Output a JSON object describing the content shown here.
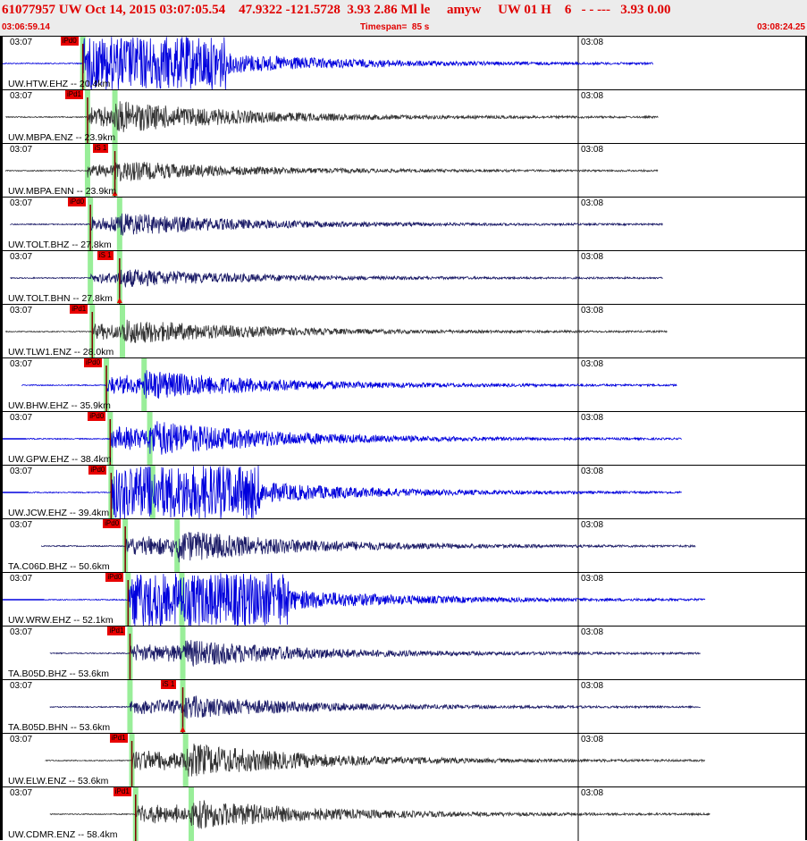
{
  "header": {
    "title": "61077957 UW Oct 14, 2015 03:07:05.54    47.9322 -121.5728  3.93 2.86 Ml le     amyw     UW 01 H    6   - - ---   3.93 0.00",
    "start_time": "03:06:59.14",
    "timespan": "Timespan=  85 s",
    "end_time": "03:08:24.25"
  },
  "colors": {
    "blue": "#0000dd",
    "navy": "#1a1a66",
    "gray": "#333333",
    "pick": "#e80000",
    "band": "#99ee99"
  },
  "panels": [
    {
      "label": "UW.HTW.EHZ -- 20.4km",
      "tick_a": "03:07",
      "tick_b": "03:08",
      "pick": "iPd0",
      "color": "blue",
      "pick_s": 8.5,
      "s_s": null,
      "start_s": -0.3,
      "end_s": 69.0,
      "amp": 1.0,
      "preline": "blue"
    },
    {
      "label": "UW.MBPA.ENZ -- 23.9km",
      "tick_a": "03:07",
      "tick_b": "03:08",
      "pick": "iPd1",
      "color": "gray",
      "pick_s": 9.0,
      "s_s": 11.9,
      "start_s": 0.3,
      "end_s": 69.5,
      "amp": 0.7,
      "preline": null
    },
    {
      "label": "UW.MBPA.ENN -- 23.9km",
      "tick_a": "03:07",
      "tick_b": "03:08",
      "pick": "iS 1",
      "color": "gray",
      "pick_s": 9.0,
      "s_s": 11.9,
      "start_s": 0.3,
      "end_s": 69.5,
      "amp": 0.45,
      "preline": null,
      "s_pick": true
    },
    {
      "label": "UW.TOLT.BHZ -- 27.8km",
      "tick_a": "03:07",
      "tick_b": "03:08",
      "pick": "iPd0",
      "color": "navy",
      "pick_s": 9.3,
      "s_s": 12.4,
      "start_s": 0.8,
      "end_s": 70.0,
      "amp": 0.5,
      "preline": null
    },
    {
      "label": "UW.TOLT.BHN -- 27.8km",
      "tick_a": "03:07",
      "tick_b": "03:08",
      "pick": "iS 1",
      "color": "navy",
      "pick_s": 9.3,
      "s_s": 12.4,
      "start_s": 0.8,
      "end_s": 70.0,
      "amp": 0.4,
      "preline": null,
      "s_pick": true
    },
    {
      "label": "UW.TLW1.ENZ -- 28.0km",
      "tick_a": "03:07",
      "tick_b": "03:08",
      "pick": "iPd1",
      "color": "gray",
      "pick_s": 9.5,
      "s_s": 12.7,
      "start_s": 0.3,
      "end_s": 70.5,
      "amp": 0.55,
      "preline": null
    },
    {
      "label": "UW.BHW.EHZ -- 35.9km",
      "tick_a": "03:07",
      "tick_b": "03:08",
      "pick": "iPd0",
      "color": "blue",
      "pick_s": 11.0,
      "s_s": 15.0,
      "start_s": 2.0,
      "end_s": 71.5,
      "amp": 0.65,
      "preline": null
    },
    {
      "label": "UW.GPW.EHZ -- 38.4km",
      "tick_a": "03:07",
      "tick_b": "03:08",
      "pick": "iPd0",
      "color": "blue",
      "pick_s": 11.4,
      "s_s": 15.6,
      "start_s": 2.5,
      "end_s": 72.0,
      "amp": 0.8,
      "preline": "blue"
    },
    {
      "label": "UW.JCW.EHZ -- 39.4km",
      "tick_a": "03:07",
      "tick_b": "03:08",
      "pick": "iPd0",
      "color": "blue",
      "pick_s": 11.5,
      "s_s": 15.9,
      "start_s": 2.7,
      "end_s": 72.0,
      "amp": 1.0,
      "preline": "blue"
    },
    {
      "label": "TA.C06D.BHZ -- 50.6km",
      "tick_a": "03:07",
      "tick_b": "03:08",
      "pick": "iPd0",
      "color": "navy",
      "pick_s": 13.0,
      "s_s": 18.5,
      "start_s": 4.1,
      "end_s": 73.5,
      "amp": 0.7,
      "preline": null
    },
    {
      "label": "UW.WRW.EHZ -- 52.1km",
      "tick_a": "03:07",
      "tick_b": "03:08",
      "pick": "iPd0",
      "color": "blue",
      "pick_s": 13.3,
      "s_s": 19.0,
      "start_s": 4.4,
      "end_s": 74.5,
      "amp": 1.0,
      "preline": "blue"
    },
    {
      "label": "TA.B05D.BHZ -- 53.6km",
      "tick_a": "03:07",
      "tick_b": "03:08",
      "pick": "iPd1",
      "color": "navy",
      "pick_s": 13.5,
      "s_s": 19.1,
      "start_s": 5.0,
      "end_s": 74.0,
      "amp": 0.6,
      "preline": null
    },
    {
      "label": "TA.B05D.BHN -- 53.6km",
      "tick_a": "03:07",
      "tick_b": "03:08",
      "pick": "iS 1",
      "color": "navy",
      "pick_s": 13.5,
      "s_s": 19.1,
      "start_s": 5.0,
      "end_s": 74.0,
      "amp": 0.5,
      "preline": null,
      "s_pick": true
    },
    {
      "label": "UW.ELW.ENZ -- 53.6km",
      "tick_a": "03:07",
      "tick_b": "03:08",
      "pick": "iPd1",
      "color": "gray",
      "pick_s": 13.7,
      "s_s": 19.4,
      "start_s": 4.5,
      "end_s": 74.5,
      "amp": 0.75,
      "preline": null
    },
    {
      "label": "UW.CDMR.ENZ -- 58.4km",
      "tick_a": "03:07",
      "tick_b": "03:08",
      "pick": "iPd1",
      "color": "gray",
      "pick_s": 14.1,
      "s_s": 20.0,
      "start_s": 5.0,
      "end_s": 75.0,
      "amp": 0.65,
      "preline": null
    }
  ]
}
